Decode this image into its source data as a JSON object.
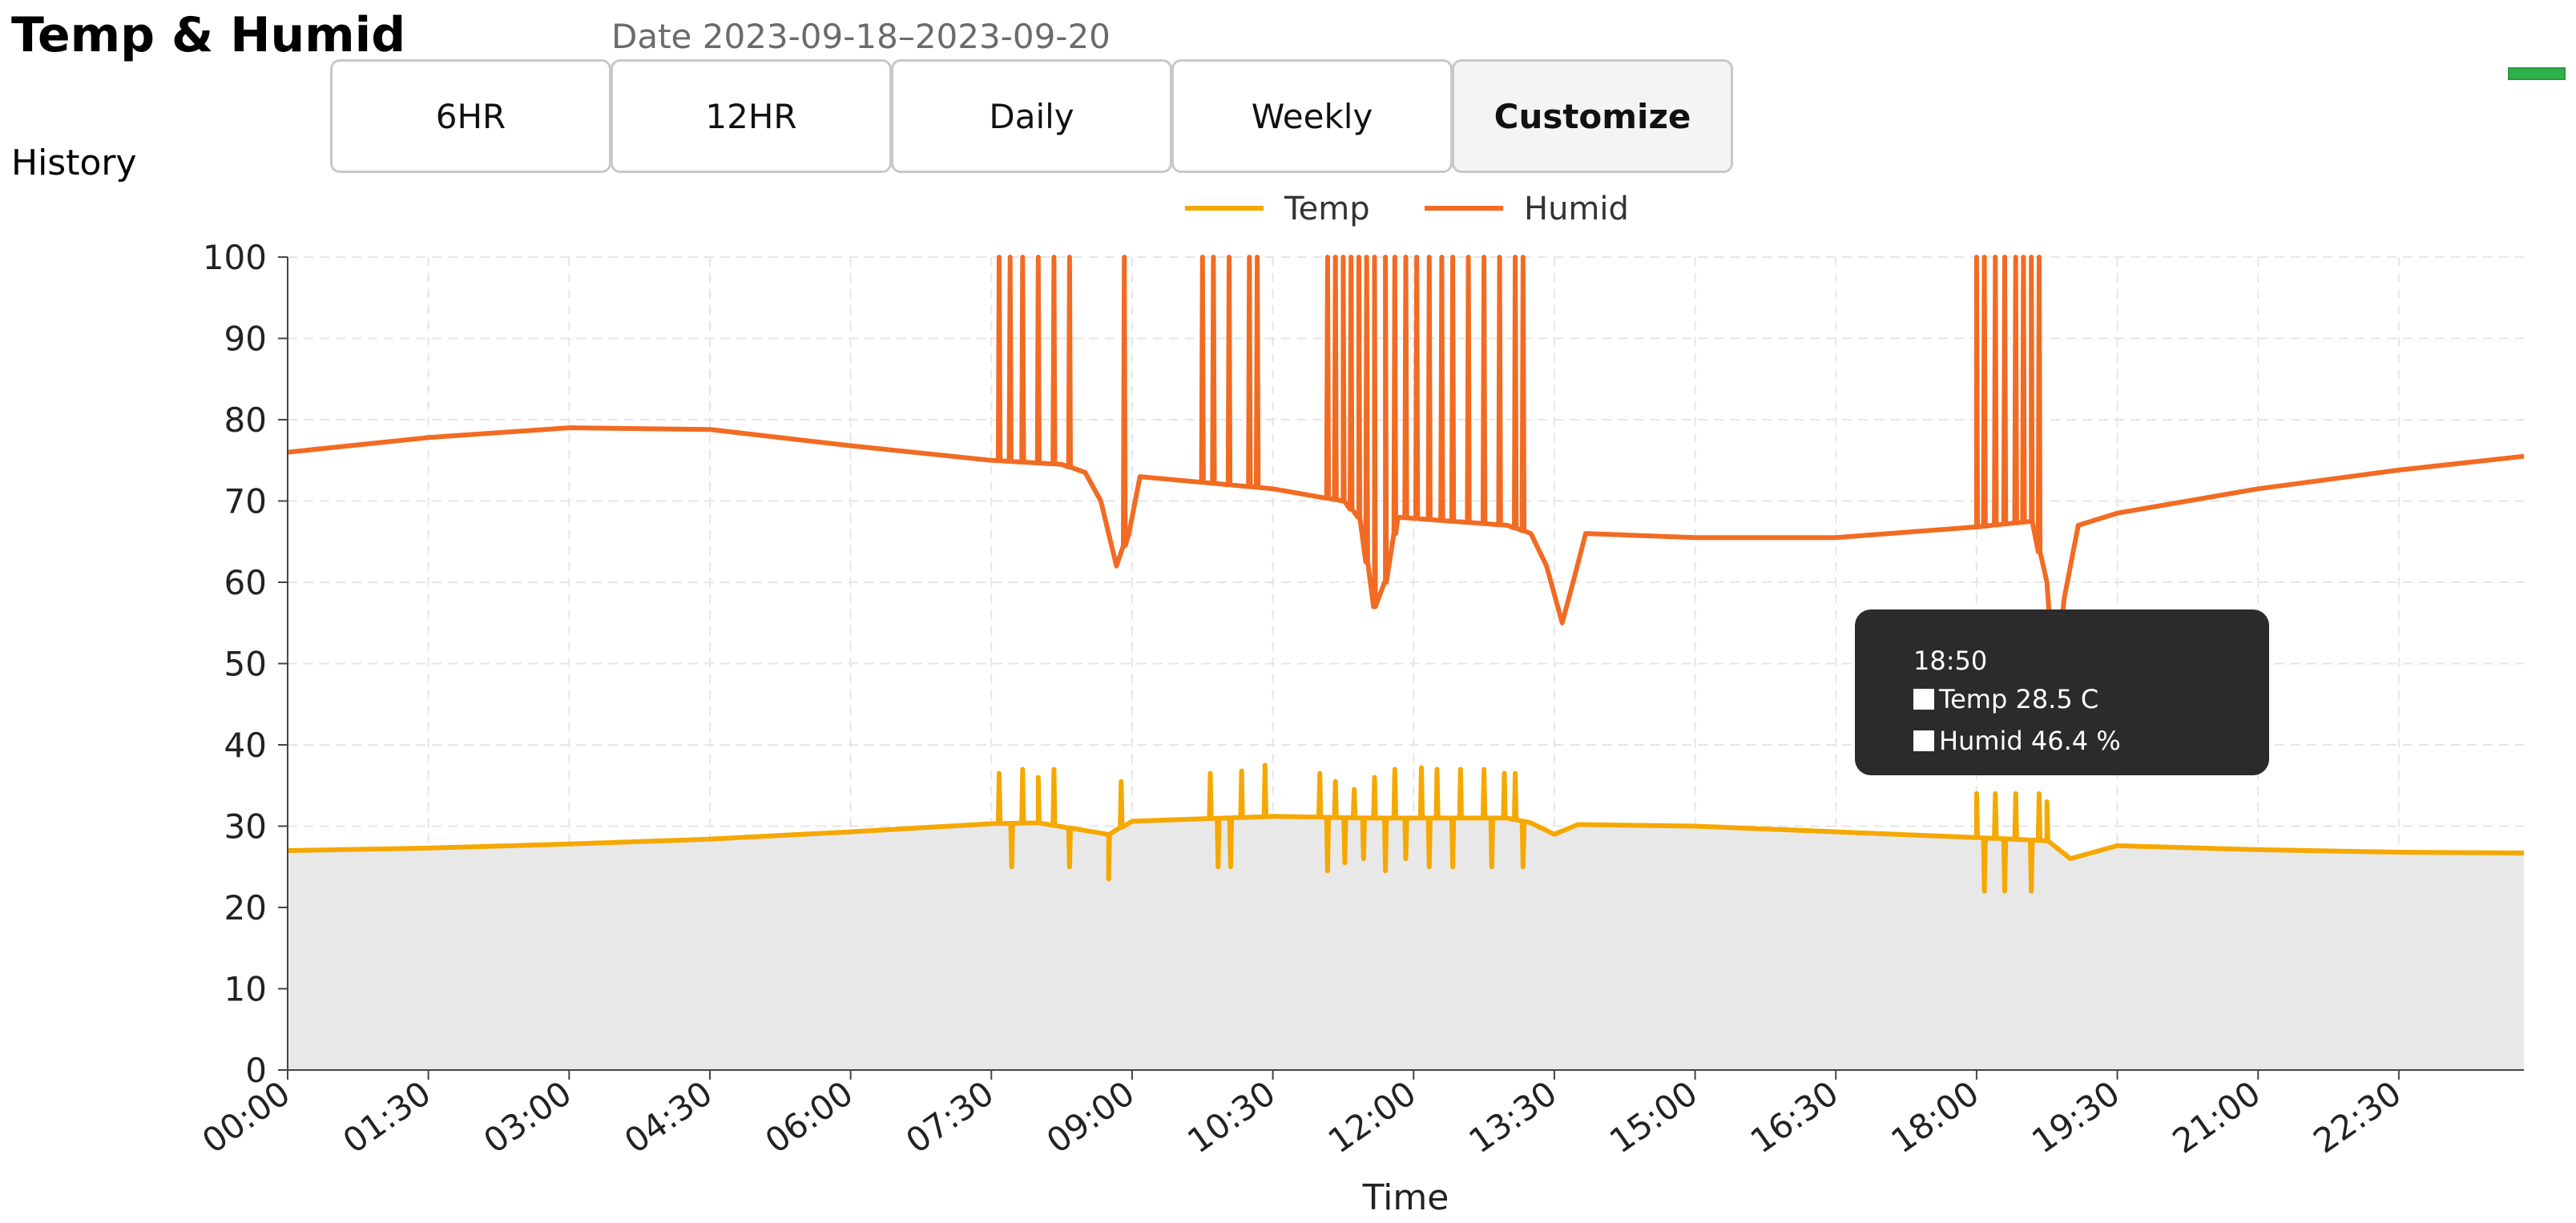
{
  "header": {
    "title": "Temp & Humid",
    "date_label": "Date 2023-09-18–2023-09-20",
    "section_label": "History"
  },
  "range_tabs": [
    {
      "label": "6HR",
      "active": false
    },
    {
      "label": "12HR",
      "active": false
    },
    {
      "label": "Daily",
      "active": false
    },
    {
      "label": "Weekly",
      "active": false
    },
    {
      "label": "Customize",
      "active": true
    }
  ],
  "status_indicator": {
    "color": "#2db24a"
  },
  "tooltip": {
    "time": "18:50",
    "temp_text": "Temp 28.5 C",
    "humid_text": "Humid 46.4 %"
  },
  "colors": {
    "temp": "#F5A800",
    "humid": "#F26B22",
    "area_fill": "#E8E8E8",
    "grid": "#E6E6E6",
    "tooltip_bg": "#2B2B2B"
  },
  "chart_data": {
    "type": "line",
    "title": "",
    "xlabel": "Time",
    "ylabel": "",
    "x_range": [
      "00:00",
      "23:50"
    ],
    "x_ticks": [
      "00:00",
      "01:30",
      "03:00",
      "04:30",
      "06:00",
      "07:30",
      "09:00",
      "10:30",
      "12:00",
      "13:30",
      "15:00",
      "16:30",
      "18:00",
      "19:30",
      "21:00",
      "22:30"
    ],
    "ylim": [
      0,
      100
    ],
    "y_ticks": [
      0,
      10,
      20,
      30,
      40,
      50,
      60,
      70,
      80,
      90,
      100
    ],
    "grid": true,
    "legend_position": "top-center",
    "series": [
      {
        "name": "Temp",
        "color": "#F5A800",
        "filled": true,
        "points": [
          [
            "00:00",
            27.0
          ],
          [
            "01:30",
            27.3
          ],
          [
            "03:00",
            27.8
          ],
          [
            "04:30",
            28.4
          ],
          [
            "06:00",
            29.3
          ],
          [
            "07:30",
            30.3
          ],
          [
            "08:00",
            30.4
          ],
          [
            "08:45",
            29.0
          ],
          [
            "09:00",
            30.6
          ],
          [
            "10:30",
            31.2
          ],
          [
            "11:30",
            31.0
          ],
          [
            "12:00",
            31.0
          ],
          [
            "13:00",
            31.0
          ],
          [
            "13:15",
            30.4
          ],
          [
            "13:30",
            29.0
          ],
          [
            "13:45",
            30.2
          ],
          [
            "15:00",
            30.0
          ],
          [
            "16:30",
            29.3
          ],
          [
            "18:00",
            28.6
          ],
          [
            "18:45",
            28.2
          ],
          [
            "19:00",
            26.0
          ],
          [
            "19:30",
            27.6
          ],
          [
            "21:00",
            27.1
          ],
          [
            "22:30",
            26.8
          ],
          [
            "23:50",
            26.7
          ]
        ],
        "spikes": [
          {
            "time": "07:35",
            "value": 36.5
          },
          {
            "time": "07:43",
            "value": 25.0
          },
          {
            "time": "07:50",
            "value": 37.0
          },
          {
            "time": "08:00",
            "value": 36.0
          },
          {
            "time": "08:10",
            "value": 37.0
          },
          {
            "time": "08:20",
            "value": 25.0
          },
          {
            "time": "08:45",
            "value": 23.5
          },
          {
            "time": "08:53",
            "value": 35.5
          },
          {
            "time": "09:50",
            "value": 36.5
          },
          {
            "time": "09:55",
            "value": 25.0
          },
          {
            "time": "10:03",
            "value": 25.0
          },
          {
            "time": "10:10",
            "value": 36.8
          },
          {
            "time": "10:25",
            "value": 37.5
          },
          {
            "time": "11:00",
            "value": 36.5
          },
          {
            "time": "11:05",
            "value": 24.5
          },
          {
            "time": "11:10",
            "value": 35.5
          },
          {
            "time": "11:16",
            "value": 25.5
          },
          {
            "time": "11:22",
            "value": 34.5
          },
          {
            "time": "11:28",
            "value": 26.0
          },
          {
            "time": "11:35",
            "value": 36.0
          },
          {
            "time": "11:42",
            "value": 24.5
          },
          {
            "time": "11:48",
            "value": 37.0
          },
          {
            "time": "11:55",
            "value": 26.0
          },
          {
            "time": "12:05",
            "value": 37.2
          },
          {
            "time": "12:10",
            "value": 25.0
          },
          {
            "time": "12:15",
            "value": 37.0
          },
          {
            "time": "12:25",
            "value": 25.0
          },
          {
            "time": "12:30",
            "value": 37.0
          },
          {
            "time": "12:45",
            "value": 37.0
          },
          {
            "time": "12:50",
            "value": 25.0
          },
          {
            "time": "12:58",
            "value": 36.5
          },
          {
            "time": "13:05",
            "value": 36.5
          },
          {
            "time": "13:10",
            "value": 25.0
          },
          {
            "time": "18:00",
            "value": 34.0
          },
          {
            "time": "18:05",
            "value": 22.0
          },
          {
            "time": "18:12",
            "value": 34.0
          },
          {
            "time": "18:18",
            "value": 22.0
          },
          {
            "time": "18:25",
            "value": 34.0
          },
          {
            "time": "18:35",
            "value": 22.0
          },
          {
            "time": "18:40",
            "value": 34.0
          },
          {
            "time": "18:45",
            "value": 33.0
          }
        ]
      },
      {
        "name": "Humid",
        "color": "#F26B22",
        "filled": false,
        "points": [
          [
            "00:00",
            76.0
          ],
          [
            "01:30",
            77.8
          ],
          [
            "03:00",
            79.0
          ],
          [
            "04:30",
            78.8
          ],
          [
            "06:00",
            76.8
          ],
          [
            "07:30",
            75.0
          ],
          [
            "08:15",
            74.5
          ],
          [
            "08:30",
            73.5
          ],
          [
            "08:40",
            70.0
          ],
          [
            "08:50",
            62.0
          ],
          [
            "08:58",
            66.0
          ],
          [
            "09:05",
            73.0
          ],
          [
            "10:30",
            71.5
          ],
          [
            "11:15",
            70.0
          ],
          [
            "11:25",
            68.0
          ],
          [
            "11:35",
            57.0
          ],
          [
            "11:42",
            60.0
          ],
          [
            "11:50",
            68.0
          ],
          [
            "13:00",
            67.0
          ],
          [
            "13:15",
            66.0
          ],
          [
            "13:25",
            62.0
          ],
          [
            "13:35",
            55.0
          ],
          [
            "13:42",
            60.0
          ],
          [
            "13:50",
            66.0
          ],
          [
            "15:00",
            65.5
          ],
          [
            "16:30",
            65.5
          ],
          [
            "18:00",
            66.8
          ],
          [
            "18:35",
            67.5
          ],
          [
            "18:45",
            60.0
          ],
          [
            "18:50",
            46.4
          ],
          [
            "18:56",
            58.0
          ],
          [
            "19:05",
            67.0
          ],
          [
            "19:30",
            68.5
          ],
          [
            "21:00",
            71.5
          ],
          [
            "22:30",
            73.8
          ],
          [
            "23:50",
            75.5
          ]
        ],
        "spikes": [
          {
            "time": "07:35",
            "value": 100
          },
          {
            "time": "07:42",
            "value": 100
          },
          {
            "time": "07:50",
            "value": 100
          },
          {
            "time": "08:00",
            "value": 100
          },
          {
            "time": "08:10",
            "value": 100
          },
          {
            "time": "08:20",
            "value": 100
          },
          {
            "time": "08:55",
            "value": 100
          },
          {
            "time": "09:45",
            "value": 100
          },
          {
            "time": "09:52",
            "value": 100
          },
          {
            "time": "10:02",
            "value": 100
          },
          {
            "time": "10:15",
            "value": 100
          },
          {
            "time": "10:20",
            "value": 100
          },
          {
            "time": "11:05",
            "value": 100
          },
          {
            "time": "11:10",
            "value": 100
          },
          {
            "time": "11:15",
            "value": 100
          },
          {
            "time": "11:20",
            "value": 100
          },
          {
            "time": "11:25",
            "value": 100
          },
          {
            "time": "11:30",
            "value": 100
          },
          {
            "time": "11:35",
            "value": 100
          },
          {
            "time": "11:42",
            "value": 100
          },
          {
            "time": "11:48",
            "value": 100
          },
          {
            "time": "11:55",
            "value": 100
          },
          {
            "time": "12:02",
            "value": 100
          },
          {
            "time": "12:10",
            "value": 100
          },
          {
            "time": "12:18",
            "value": 100
          },
          {
            "time": "12:25",
            "value": 100
          },
          {
            "time": "12:35",
            "value": 100
          },
          {
            "time": "12:45",
            "value": 100
          },
          {
            "time": "12:55",
            "value": 100
          },
          {
            "time": "13:05",
            "value": 100
          },
          {
            "time": "13:10",
            "value": 100
          },
          {
            "time": "18:00",
            "value": 100
          },
          {
            "time": "18:05",
            "value": 100
          },
          {
            "time": "18:12",
            "value": 100
          },
          {
            "time": "18:18",
            "value": 100
          },
          {
            "time": "18:25",
            "value": 100
          },
          {
            "time": "18:30",
            "value": 100
          },
          {
            "time": "18:35",
            "value": 100
          },
          {
            "time": "18:40",
            "value": 100
          }
        ]
      }
    ],
    "highlight": {
      "time": "18:50",
      "temp": 28.5,
      "humid": 46.4
    }
  }
}
